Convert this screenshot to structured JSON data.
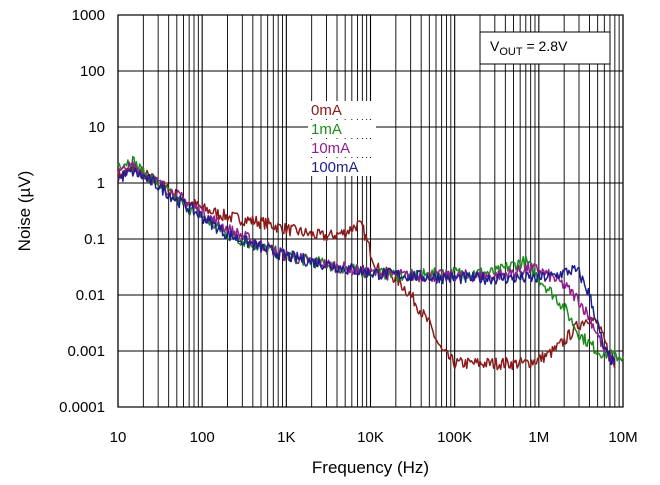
{
  "chart_data": {
    "type": "line",
    "xlabel": "Frequency (Hz)",
    "ylabel": "Noise (µV)",
    "xscale": "log",
    "yscale": "log",
    "xlim": [
      10,
      10000000
    ],
    "ylim": [
      0.0001,
      1000
    ],
    "grid": true,
    "x_tick_labels": [
      "10",
      "100",
      "1K",
      "10K",
      "100K",
      "1M",
      "10M"
    ],
    "y_tick_labels": [
      "0.0001",
      "0.001",
      "0.01",
      "0.1",
      "1",
      "10",
      "100",
      "1000"
    ],
    "annotation": {
      "v": "V",
      "sub": "OUT",
      "rest": " = 2.8V"
    },
    "legend_placement": "center",
    "series": [
      {
        "name": "0mA",
        "color": "#8B1A1A",
        "x": [
          10,
          15,
          20,
          30,
          50,
          100,
          200,
          500,
          1000,
          2000,
          3000,
          5000,
          7000,
          8000,
          10000,
          12000,
          15000,
          20000,
          30000,
          50000,
          70000,
          100000,
          200000,
          300000,
          500000,
          700000,
          1000000,
          1500000,
          2000000,
          3000000,
          4000000,
          5000000,
          6000000,
          8000000
        ],
        "y": [
          1.3,
          1.8,
          1.5,
          1.0,
          0.6,
          0.35,
          0.25,
          0.2,
          0.15,
          0.12,
          0.11,
          0.13,
          0.18,
          0.16,
          0.06,
          0.03,
          0.025,
          0.02,
          0.01,
          0.003,
          0.001,
          0.0006,
          0.0006,
          0.0006,
          0.0006,
          0.0006,
          0.0007,
          0.001,
          0.0015,
          0.003,
          0.004,
          0.003,
          0.0015,
          0.0005
        ]
      },
      {
        "name": "1mA",
        "color": "#1E8C1E",
        "x": [
          10,
          15,
          20,
          30,
          50,
          100,
          200,
          500,
          1000,
          2000,
          5000,
          10000,
          30000,
          100000,
          200000,
          300000,
          500000,
          700000,
          1000000,
          1500000,
          2000000,
          3000000,
          5000000,
          8000000,
          10000000
        ],
        "y": [
          2.2,
          2.5,
          1.5,
          1.0,
          0.5,
          0.25,
          0.12,
          0.07,
          0.05,
          0.04,
          0.03,
          0.025,
          0.022,
          0.025,
          0.025,
          0.025,
          0.035,
          0.04,
          0.02,
          0.01,
          0.006,
          0.002,
          0.001,
          0.0008,
          0.0008
        ]
      },
      {
        "name": "10mA",
        "color": "#8E1F8E",
        "x": [
          10,
          15,
          20,
          30,
          50,
          100,
          200,
          500,
          1000,
          2000,
          5000,
          10000,
          30000,
          100000,
          300000,
          500000,
          700000,
          1000000,
          1500000,
          2000000,
          3000000,
          4000000,
          5000000,
          6000000,
          8000000
        ],
        "y": [
          1.5,
          2.0,
          1.5,
          1.0,
          0.6,
          0.3,
          0.15,
          0.08,
          0.05,
          0.04,
          0.03,
          0.025,
          0.022,
          0.022,
          0.022,
          0.025,
          0.03,
          0.028,
          0.02,
          0.015,
          0.008,
          0.004,
          0.002,
          0.001,
          0.0006
        ]
      },
      {
        "name": "100mA",
        "color": "#1F1F8C",
        "x": [
          10,
          15,
          20,
          30,
          50,
          100,
          200,
          500,
          1000,
          2000,
          5000,
          10000,
          30000,
          100000,
          300000,
          500000,
          1000000,
          1500000,
          2000000,
          2500000,
          3000000,
          4000000,
          5000000,
          6000000,
          8000000
        ],
        "y": [
          1.2,
          1.6,
          1.3,
          0.9,
          0.5,
          0.25,
          0.12,
          0.07,
          0.05,
          0.04,
          0.03,
          0.025,
          0.022,
          0.02,
          0.02,
          0.02,
          0.02,
          0.022,
          0.025,
          0.028,
          0.025,
          0.01,
          0.003,
          0.001,
          0.0006
        ]
      }
    ]
  }
}
